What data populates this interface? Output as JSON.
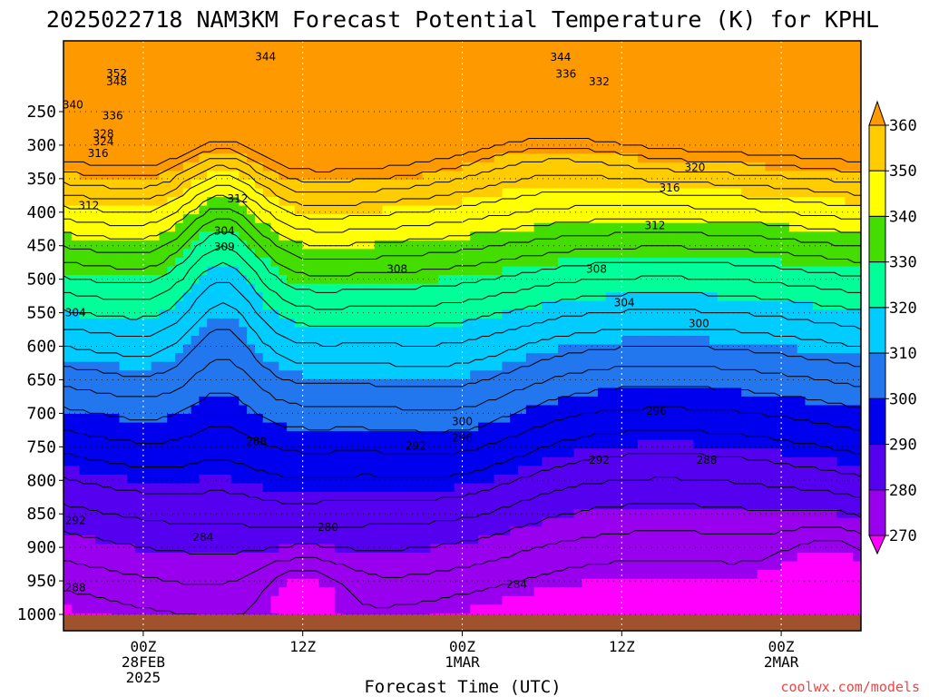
{
  "chart_data": {
    "type": "contour",
    "title": "2025022718 NAM3KM Forecast Potential Temperature (K) for KPHL",
    "xlabel": "Forecast Time (UTC)",
    "ylabel": "",
    "y_ticks": [
      "250",
      "300",
      "350",
      "400",
      "450",
      "500",
      "550",
      "600",
      "650",
      "700",
      "750",
      "800",
      "850",
      "900",
      "950",
      "1000"
    ],
    "x_ticks": [
      {
        "h": 6,
        "lines": [
          "00Z",
          "28FEB",
          "2025"
        ]
      },
      {
        "h": 18,
        "lines": [
          "12Z"
        ]
      },
      {
        "h": 30,
        "lines": [
          "00Z",
          "1MAR"
        ]
      },
      {
        "h": 42,
        "lines": [
          "12Z"
        ]
      },
      {
        "h": 54,
        "lines": [
          "00Z",
          "2MAR"
        ]
      }
    ],
    "colorbar": {
      "levels": [
        "360",
        "350",
        "340",
        "330",
        "320",
        "310",
        "300",
        "290",
        "280",
        "270"
      ],
      "colors": [
        "#ff9900",
        "#ffcc00",
        "#ffff00",
        "#44dd00",
        "#00ff99",
        "#00ccff",
        "#2277ee",
        "#0000ee",
        "#5500ee",
        "#9900ee",
        "#ff00ff"
      ]
    },
    "contour_labels": [
      {
        "t": "344",
        "h": 15.2,
        "p": 168
      },
      {
        "t": "344",
        "h": 37.4,
        "p": 169
      },
      {
        "t": "336",
        "h": 37.8,
        "p": 194
      },
      {
        "t": "332",
        "h": 40.3,
        "p": 205
      },
      {
        "t": "352",
        "h": 4.0,
        "p": 193
      },
      {
        "t": "348",
        "h": 4.0,
        "p": 205
      },
      {
        "t": "340",
        "h": 0.7,
        "p": 240
      },
      {
        "t": "336",
        "h": 3.7,
        "p": 256
      },
      {
        "t": "328",
        "h": 3.0,
        "p": 283
      },
      {
        "t": "324",
        "h": 3.0,
        "p": 295
      },
      {
        "t": "316",
        "h": 2.6,
        "p": 312
      },
      {
        "t": "320",
        "h": 47.5,
        "p": 333
      },
      {
        "t": "316",
        "h": 45.6,
        "p": 364
      },
      {
        "t": "312",
        "h": 1.9,
        "p": 390
      },
      {
        "t": "312",
        "h": 13.1,
        "p": 380
      },
      {
        "t": "312",
        "h": 44.5,
        "p": 420
      },
      {
        "t": "304",
        "h": 12.1,
        "p": 428
      },
      {
        "t": "309",
        "h": 12.1,
        "p": 452
      },
      {
        "t": "308",
        "h": 25.1,
        "p": 485
      },
      {
        "t": "308",
        "h": 40.1,
        "p": 485
      },
      {
        "t": "304",
        "h": 42.2,
        "p": 535
      },
      {
        "t": "304",
        "h": 0.9,
        "p": 550
      },
      {
        "t": "300",
        "h": 47.8,
        "p": 566
      },
      {
        "t": "300",
        "h": 30.0,
        "p": 712
      },
      {
        "t": "296",
        "h": 30.0,
        "p": 737
      },
      {
        "t": "296",
        "h": 44.6,
        "p": 697
      },
      {
        "t": "292",
        "h": 26.5,
        "p": 749
      },
      {
        "t": "292",
        "h": 40.3,
        "p": 770
      },
      {
        "t": "288",
        "h": 48.4,
        "p": 770
      },
      {
        "t": "288",
        "h": 14.5,
        "p": 742
      },
      {
        "t": "292",
        "h": 0.9,
        "p": 860
      },
      {
        "t": "284",
        "h": 10.5,
        "p": 885
      },
      {
        "t": "280",
        "h": 19.9,
        "p": 870
      },
      {
        "t": "284",
        "h": 34.1,
        "p": 955
      },
      {
        "t": "288",
        "h": 0.9,
        "p": 960
      }
    ]
  },
  "credit": "coolwx.com/models"
}
